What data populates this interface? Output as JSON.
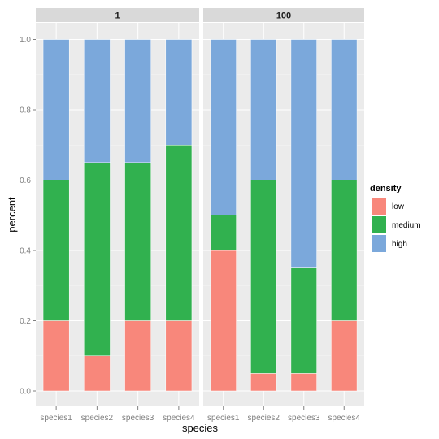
{
  "chart_data": {
    "type": "bar",
    "stacked": true,
    "xlabel": "species",
    "ylabel": "percent",
    "ylim": [
      0,
      1
    ],
    "yticks": [
      "0.0",
      "0.2",
      "0.4",
      "0.6",
      "0.8",
      "1.0"
    ],
    "grid": true,
    "legend": {
      "title": "density",
      "position": "right",
      "entries": [
        "low",
        "medium",
        "high"
      ]
    },
    "colors": {
      "low": "#f8877b",
      "medium": "#31b14f",
      "high": "#7ba8db"
    },
    "categories": [
      "species1",
      "species2",
      "species3",
      "species4"
    ],
    "facets": [
      {
        "label": "1",
        "series": [
          {
            "name": "low",
            "values": [
              0.2,
              0.1,
              0.2,
              0.2
            ]
          },
          {
            "name": "medium",
            "values": [
              0.4,
              0.55,
              0.45,
              0.5
            ]
          },
          {
            "name": "high",
            "values": [
              0.4,
              0.35,
              0.35,
              0.3
            ]
          }
        ]
      },
      {
        "label": "100",
        "series": [
          {
            "name": "low",
            "values": [
              0.4,
              0.05,
              0.05,
              0.2
            ]
          },
          {
            "name": "medium",
            "values": [
              0.1,
              0.55,
              0.3,
              0.4
            ]
          },
          {
            "name": "high",
            "values": [
              0.5,
              0.4,
              0.65,
              0.4
            ]
          }
        ]
      }
    ]
  }
}
